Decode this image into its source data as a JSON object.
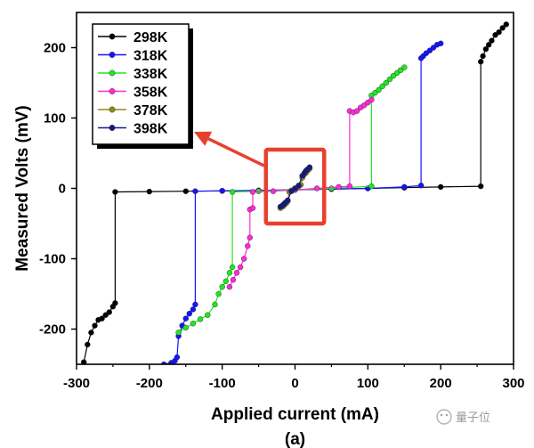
{
  "chart_data": {
    "type": "line",
    "xlabel": "Applied current (mA)",
    "ylabel": "Measured Volts (mV)",
    "subfigure_label": "(a)",
    "xlim": [
      -300,
      300
    ],
    "ylim": [
      -250,
      250
    ],
    "x_ticks": [
      -300,
      -200,
      -100,
      0,
      100,
      200,
      300
    ],
    "y_ticks": [
      -200,
      -100,
      0,
      100,
      200
    ],
    "x_tick_labels": [
      "-300",
      "-200",
      "-100",
      "0",
      "100",
      "200",
      "300"
    ],
    "y_tick_labels": [
      "-200",
      "-100",
      "0",
      "100",
      "200"
    ],
    "legend_position": "top-left",
    "annotation": "red box around the 378K and 398K curves near the origin, with a red arrow pointing to the legend",
    "series": [
      {
        "name": "298K",
        "color": "#000000",
        "x": [
          -290,
          -285,
          -280,
          -275,
          -270,
          -265,
          -260,
          -255,
          -250,
          -247,
          -247,
          -200,
          -150,
          -100,
          -50,
          0,
          50,
          100,
          150,
          200,
          255,
          255,
          258,
          262,
          266,
          270,
          275,
          280,
          285,
          290
        ],
        "y": [
          -247,
          -222,
          -205,
          -195,
          -187,
          -185,
          -180,
          -176,
          -168,
          -163,
          -5,
          -4.5,
          -4,
          -3.5,
          -3,
          -2,
          -1,
          0,
          1,
          2,
          3,
          180,
          188,
          198,
          204,
          210,
          218,
          222,
          228,
          233
        ]
      },
      {
        "name": "318K",
        "color": "#1414ff",
        "x": [
          -180,
          -170,
          -165,
          -162,
          -160,
          -155,
          -150,
          -145,
          -140,
          -137,
          -137,
          -100,
          -50,
          0,
          50,
          100,
          150,
          173,
          173,
          176,
          180,
          185,
          190,
          195,
          200
        ],
        "y": [
          -250,
          -248,
          -245,
          -240,
          -210,
          -195,
          -185,
          -178,
          -172,
          -165,
          -4,
          -3.5,
          -3,
          -2,
          -1,
          0,
          2,
          4,
          185,
          188,
          192,
          196,
          200,
          204,
          206
        ]
      },
      {
        "name": "338K",
        "color": "#22e622",
        "x": [
          -160,
          -150,
          -140,
          -130,
          -120,
          -110,
          -105,
          -100,
          -95,
          -90,
          -86,
          -86,
          -50,
          0,
          50,
          105,
          105,
          110,
          115,
          120,
          125,
          130,
          135,
          140,
          145,
          150
        ],
        "y": [
          -205,
          -198,
          -192,
          -186,
          -180,
          -165,
          -150,
          -140,
          -132,
          -120,
          -112,
          -5,
          -4,
          -2,
          0,
          3,
          132,
          136,
          140,
          145,
          150,
          155,
          160,
          164,
          168,
          172
        ]
      },
      {
        "name": "358K",
        "color": "#ff2ad8",
        "x": [
          -90,
          -85,
          -80,
          -75,
          -70,
          -65,
          -62,
          -62,
          -58,
          -58,
          -30,
          0,
          30,
          60,
          75,
          75,
          80,
          85,
          90,
          95,
          100,
          105
        ],
        "y": [
          -140,
          -130,
          -120,
          -112,
          -100,
          -82,
          -70,
          -30,
          -28,
          -5,
          -4,
          -2,
          0,
          2,
          3,
          110,
          108,
          110,
          115,
          118,
          122,
          126
        ]
      },
      {
        "name": "378K",
        "color": "#8f8b1a",
        "x": [
          -20,
          -17,
          -15,
          -12,
          -10,
          -8,
          -5,
          0,
          5,
          8,
          10,
          12,
          15,
          18,
          20
        ],
        "y": [
          -28,
          -26,
          -24,
          -21,
          -18,
          -5,
          -3,
          0,
          3,
          5,
          15,
          19,
          22,
          26,
          28
        ]
      },
      {
        "name": "398K",
        "color": "#121c82",
        "x": [
          -20,
          -17,
          -15,
          -13,
          -10,
          -5,
          0,
          5,
          10,
          13,
          15,
          17,
          20
        ],
        "y": [
          -26,
          -24,
          -22,
          -20,
          -17,
          -4,
          0,
          4,
          18,
          22,
          25,
          27,
          30
        ]
      }
    ]
  },
  "watermark": {
    "text": "量子位"
  }
}
